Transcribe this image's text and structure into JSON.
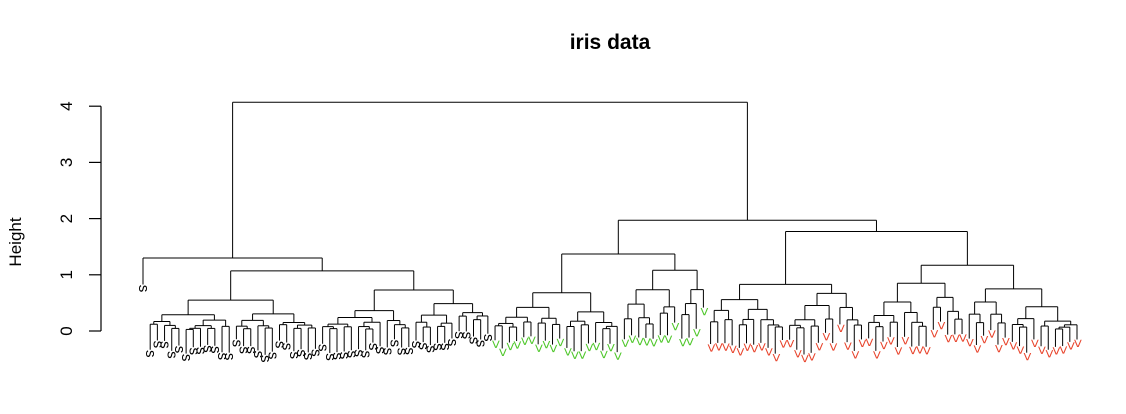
{
  "chart_data": {
    "type": "dendrogram",
    "title": "iris data",
    "ylabel": "Height",
    "xlabel": "",
    "yticks": [
      0,
      1,
      2,
      3,
      4
    ],
    "ylim": [
      0,
      4.3
    ],
    "grid": false,
    "legend": "none",
    "colors": {
      "s": "#000000",
      "c": "#4ec72a",
      "v": "#e8442c",
      "line": "#000000"
    },
    "tree": {
      "h": 4.07,
      "children": [
        {
          "h": 1.3,
          "children": [
            {
              "leaf": "s",
              "h": 0.8
            },
            {
              "h": 1.07,
              "children": [
                {
                  "leaf": "s",
                  "n": 24,
                  "h": 0.55
                },
                {
                  "leaf": "s",
                  "n": 24,
                  "h": 0.73
                }
              ]
            }
          ]
        },
        {
          "h": 1.97,
          "children": [
            {
              "h": 1.37,
              "children": [
                {
                  "leaf": "c",
                  "n": 18,
                  "h": 0.68
                },
                {
                  "leaf": "c",
                  "n": 12,
                  "h": 1.08
                }
              ]
            },
            {
              "h": 1.77,
              "children": [
                {
                  "leaf": "v",
                  "n": 22,
                  "h": 0.83
                },
                {
                  "h": 1.17,
                  "children": [
                    {
                      "leaf": "v",
                      "n": 14,
                      "h": 0.85
                    },
                    {
                      "leaf": "v",
                      "n": 16,
                      "h": 0.75
                    }
                  ]
                }
              ]
            }
          ]
        }
      ]
    }
  }
}
